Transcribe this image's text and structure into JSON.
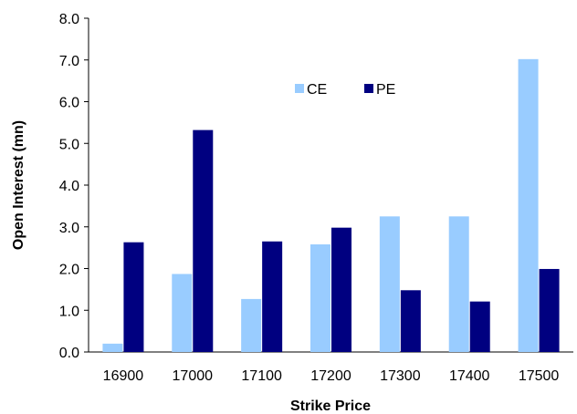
{
  "chart_data": {
    "type": "bar",
    "title": "",
    "xlabel": "Strike Price",
    "ylabel": "Open Interest (mn)",
    "categories": [
      "16900",
      "17000",
      "17100",
      "17200",
      "17300",
      "17400",
      "17500"
    ],
    "series": [
      {
        "name": "CE",
        "values": [
          0.2,
          1.87,
          1.27,
          2.58,
          3.25,
          3.25,
          7.02
        ],
        "color": "#99ccff"
      },
      {
        "name": "PE",
        "values": [
          2.63,
          5.32,
          2.65,
          2.98,
          1.48,
          1.21,
          1.99
        ],
        "color": "#000080"
      }
    ],
    "ylim": [
      0,
      8
    ],
    "yticks": [
      "0.0",
      "1.0",
      "2.0",
      "3.0",
      "4.0",
      "5.0",
      "6.0",
      "7.0",
      "8.0"
    ],
    "grid": false,
    "legend_position": "top-center"
  }
}
